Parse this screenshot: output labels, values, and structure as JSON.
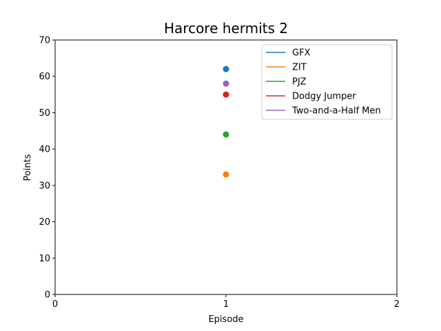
{
  "chart_data": {
    "type": "scatter",
    "title": "Harcore hermits 2",
    "xlabel": "Episode",
    "ylabel": "Points",
    "xlim": [
      0,
      2
    ],
    "ylim": [
      0,
      70
    ],
    "xticks": [
      "0",
      "1",
      "2"
    ],
    "yticks": [
      "0",
      "10",
      "20",
      "30",
      "40",
      "50",
      "60",
      "70"
    ],
    "grid": false,
    "legend_position": "top-right",
    "series": [
      {
        "name": "GFX",
        "color": "#1f77b4",
        "x": [
          1
        ],
        "y": [
          62
        ]
      },
      {
        "name": "ZIT",
        "color": "#ff7f0e",
        "x": [
          1
        ],
        "y": [
          33
        ]
      },
      {
        "name": "PJZ",
        "color": "#2ca02c",
        "x": [
          1
        ],
        "y": [
          44
        ]
      },
      {
        "name": "Dodgy Jumper",
        "color": "#d62728",
        "x": [
          1
        ],
        "y": [
          55
        ]
      },
      {
        "name": "Two-and-a-Half Men",
        "color": "#9467bd",
        "x": [
          1
        ],
        "y": [
          58
        ]
      }
    ]
  }
}
